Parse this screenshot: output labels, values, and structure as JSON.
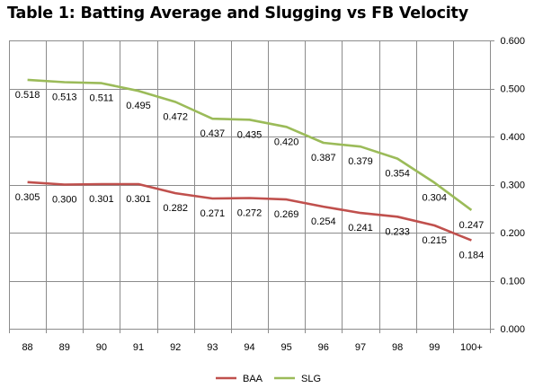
{
  "title": "Table 1: Batting Average and Slugging vs FB Velocity",
  "chart_data": {
    "type": "line",
    "title": "Table 1: Batting Average and Slugging vs FB Velocity",
    "xlabel": "",
    "ylabel": "",
    "categories": [
      "88",
      "89",
      "90",
      "91",
      "92",
      "93",
      "94",
      "95",
      "96",
      "97",
      "98",
      "99",
      "100+"
    ],
    "series": [
      {
        "name": "BAA",
        "color": "#c0504d",
        "values": [
          0.305,
          0.3,
          0.301,
          0.301,
          0.282,
          0.271,
          0.272,
          0.269,
          0.254,
          0.241,
          0.233,
          0.215,
          0.184
        ],
        "labels": [
          "0.305",
          "0.300",
          "0.301",
          "0.301",
          "0.282",
          "0.271",
          "0.272",
          "0.269",
          "0.254",
          "0.241",
          "0.233",
          "0.215",
          "0.184"
        ]
      },
      {
        "name": "SLG",
        "color": "#9bbb59",
        "values": [
          0.518,
          0.513,
          0.511,
          0.495,
          0.472,
          0.437,
          0.435,
          0.42,
          0.387,
          0.379,
          0.354,
          0.304,
          0.247
        ],
        "labels": [
          "0.518",
          "0.513",
          "0.511",
          "0.495",
          "0.472",
          "0.437",
          "0.435",
          "0.420",
          "0.387",
          "0.379",
          "0.354",
          "0.304",
          "0.247"
        ]
      }
    ],
    "yaxis": {
      "position": "right",
      "min": 0,
      "max": 0.6,
      "ticks": [
        0,
        0.1,
        0.2,
        0.3,
        0.4,
        0.5,
        0.6
      ],
      "tick_labels": [
        "0.000",
        "0.100",
        "0.200",
        "0.300",
        "0.400",
        "0.500",
        "0.600"
      ]
    },
    "grid": {
      "horizontal": true,
      "vertical": true
    },
    "legend": {
      "position": "bottom"
    }
  }
}
